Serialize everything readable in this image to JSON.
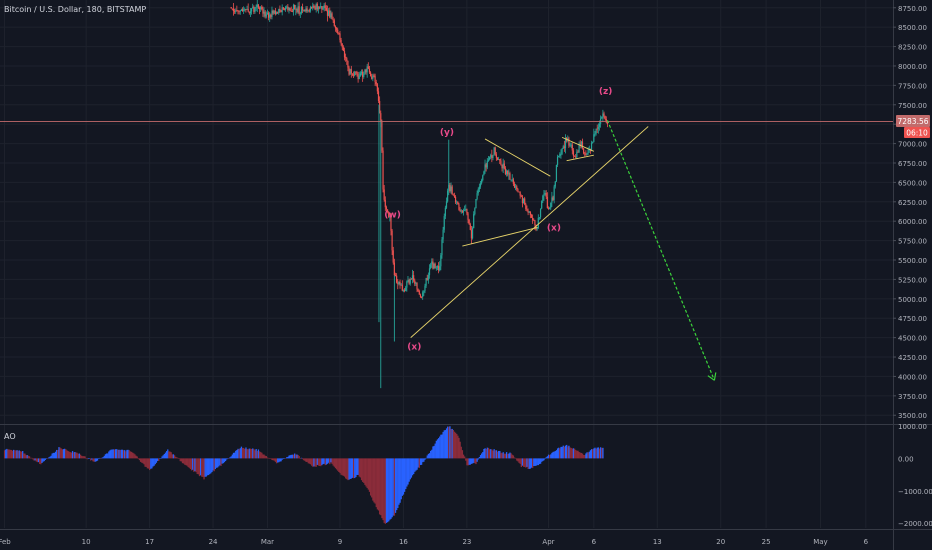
{
  "header": {
    "title": "Bitcoin / U.S. Dollar, 180, BITSTAMP"
  },
  "price_label": {
    "value": "7283.56",
    "countdown": "06:10"
  },
  "colors": {
    "background": "#131722",
    "grid": "#1e222d",
    "up": "#26a69a",
    "down": "#ef5350",
    "wave_label": "#e84a8a",
    "trendline": "#e6d36a",
    "projection": "#3bd43b",
    "price_line": "#c26b6b",
    "ao_up": "#2962ff",
    "ao_down": "#8b2c3a"
  },
  "chart_data": [
    {
      "type": "candlestick",
      "title": "Bitcoin / U.S. Dollar, 180, BITSTAMP",
      "y_ticks": [
        3500,
        3750,
        4000,
        4250,
        4500,
        4750,
        5000,
        5250,
        5500,
        5750,
        6000,
        6250,
        6500,
        6750,
        7000,
        7250,
        7500,
        7750,
        8000,
        8250,
        8500,
        8750
      ],
      "y_tick_labels": [
        "3500.00",
        "3750.00",
        "4000.00",
        "4250.00",
        "4500.00",
        "4750.00",
        "5000.00",
        "5250.00",
        "5500.00",
        "5750.00",
        "6000.00",
        "6250.00",
        "6500.00",
        "6750.00",
        "7000.00",
        "7250.00",
        "7500.00",
        "7750.00",
        "8000.00",
        "8250.00",
        "8500.00",
        "8750.00"
      ],
      "ylim": [
        3400,
        8850
      ],
      "x_ticks": [
        {
          "label": "Feb",
          "day": 0
        },
        {
          "label": "10",
          "day": 9
        },
        {
          "label": "17",
          "day": 16
        },
        {
          "label": "24",
          "day": 23
        },
        {
          "label": "Mar",
          "day": 29
        },
        {
          "label": "9",
          "day": 37
        },
        {
          "label": "16",
          "day": 44
        },
        {
          "label": "23",
          "day": 51
        },
        {
          "label": "Apr",
          "day": 60
        },
        {
          "label": "6",
          "day": 65
        },
        {
          "label": "13",
          "day": 72
        },
        {
          "label": "20",
          "day": 79
        },
        {
          "label": "25",
          "day": 84
        },
        {
          "label": "May",
          "day": 90
        },
        {
          "label": "6",
          "day": 95
        }
      ],
      "xlim": [
        -0.5,
        98
      ],
      "current_price": 7283.56,
      "price_path": [
        [
          25,
          8760
        ],
        [
          26,
          8720
        ],
        [
          27,
          8700
        ],
        [
          28,
          8760
        ],
        [
          29,
          8650
        ],
        [
          31,
          8740
        ],
        [
          33,
          8720
        ],
        [
          35,
          8760
        ],
        [
          36,
          8650
        ],
        [
          37,
          8350
        ],
        [
          37.5,
          8150
        ],
        [
          38,
          7950
        ],
        [
          39,
          7880
        ],
        [
          40,
          7950
        ],
        [
          41,
          7800
        ],
        [
          41.5,
          7300
        ],
        [
          41.8,
          6300
        ],
        [
          42.5,
          6050
        ],
        [
          43,
          5300
        ],
        [
          44,
          5100
        ],
        [
          45,
          5300
        ],
        [
          46,
          5000
        ],
        [
          47,
          5450
        ],
        [
          48,
          5400
        ],
        [
          48.5,
          6100
        ],
        [
          49,
          6450
        ],
        [
          50,
          6200
        ],
        [
          51,
          6100
        ],
        [
          51.5,
          5800
        ],
        [
          52,
          6300
        ],
        [
          53,
          6700
        ],
        [
          54,
          6900
        ],
        [
          55,
          6700
        ],
        [
          56,
          6500
        ],
        [
          57,
          6300
        ],
        [
          58,
          6100
        ],
        [
          58.7,
          5900
        ],
        [
          59.5,
          6400
        ],
        [
          60,
          6150
        ],
        [
          60.5,
          6300
        ],
        [
          61,
          6800
        ],
        [
          62,
          7050
        ],
        [
          62.5,
          6950
        ],
        [
          63,
          6800
        ],
        [
          63.5,
          7000
        ],
        [
          64,
          6850
        ],
        [
          64.5,
          6900
        ],
        [
          65,
          7100
        ],
        [
          66,
          7350
        ],
        [
          66.5,
          7300
        ]
      ],
      "spikes": [
        [
          41.3,
          4700
        ],
        [
          41.5,
          3850
        ],
        [
          43,
          4450
        ],
        [
          49,
          7050
        ]
      ],
      "wave_labels": [
        {
          "text": "(w)",
          "day": 42.8,
          "price": 6050
        },
        {
          "text": "(x)",
          "day": 45.2,
          "price": 4350
        },
        {
          "text": "(y)",
          "day": 48.8,
          "price": 7110
        },
        {
          "text": "(x)",
          "day": 60.6,
          "price": 5880
        },
        {
          "text": "(z)",
          "day": 66.3,
          "price": 7640
        }
      ],
      "trendlines": [
        {
          "from": [
            44.8,
            4500
          ],
          "to": [
            71,
            7220
          ]
        },
        {
          "from": [
            50.5,
            5680
          ],
          "to": [
            58.8,
            5920
          ]
        },
        {
          "from": [
            53,
            7060
          ],
          "to": [
            60.2,
            6580
          ]
        },
        {
          "from": [
            61.5,
            7080
          ],
          "to": [
            65,
            6900
          ]
        },
        {
          "from": [
            62,
            6780
          ],
          "to": [
            65,
            6850
          ]
        }
      ],
      "projection": {
        "from": [
          66.5,
          7300
        ],
        "to": [
          78.3,
          3950
        ]
      }
    },
    {
      "type": "bar",
      "title": "AO",
      "y_ticks": [
        1000,
        0,
        -1000,
        -2000
      ],
      "y_tick_labels": [
        "1000.00",
        "0.00",
        "−1000.00",
        "−2000.00"
      ],
      "ylim": [
        -2150,
        1000
      ],
      "ao_path": [
        [
          0,
          280
        ],
        [
          2,
          200
        ],
        [
          4,
          -180
        ],
        [
          6,
          320
        ],
        [
          8,
          160
        ],
        [
          10,
          -120
        ],
        [
          12,
          300
        ],
        [
          14,
          220
        ],
        [
          16,
          -380
        ],
        [
          18,
          260
        ],
        [
          20,
          -220
        ],
        [
          22,
          -620
        ],
        [
          24,
          -180
        ],
        [
          26,
          340
        ],
        [
          28,
          250
        ],
        [
          30,
          -150
        ],
        [
          32,
          160
        ],
        [
          34,
          -260
        ],
        [
          36,
          -150
        ],
        [
          37,
          -480
        ],
        [
          38,
          -680
        ],
        [
          39,
          -520
        ],
        [
          40,
          -900
        ],
        [
          41,
          -1500
        ],
        [
          42,
          -2050
        ],
        [
          43,
          -1750
        ],
        [
          44,
          -1100
        ],
        [
          45,
          -520
        ],
        [
          46,
          -180
        ],
        [
          47,
          240
        ],
        [
          48,
          680
        ],
        [
          49,
          1000
        ],
        [
          50,
          720
        ],
        [
          51,
          -200
        ],
        [
          52,
          -150
        ],
        [
          53,
          320
        ],
        [
          54,
          260
        ],
        [
          55,
          180
        ],
        [
          56,
          140
        ],
        [
          57,
          -240
        ],
        [
          58,
          -320
        ],
        [
          59,
          -180
        ],
        [
          60,
          90
        ],
        [
          61,
          300
        ],
        [
          62,
          420
        ],
        [
          63,
          250
        ],
        [
          64,
          110
        ],
        [
          65,
          320
        ],
        [
          66,
          320
        ]
      ]
    }
  ]
}
